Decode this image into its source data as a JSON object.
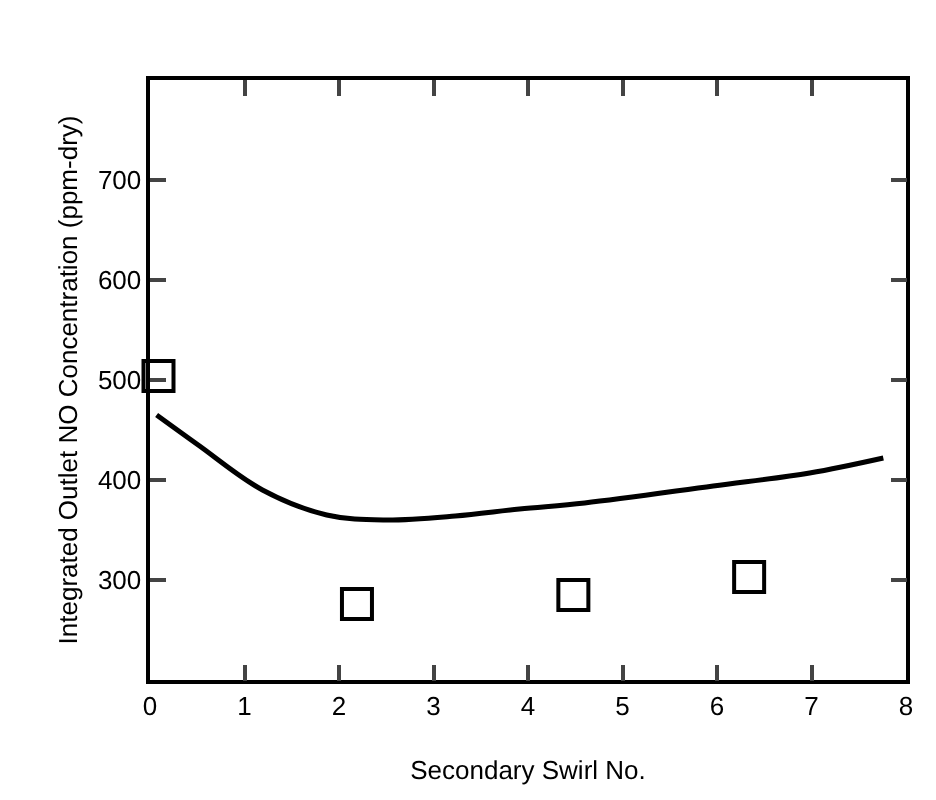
{
  "chart_data": {
    "type": "scatter",
    "xlabel": "Secondary Swirl No.",
    "ylabel": "Integrated Outlet NO Concentration (ppm-dry)",
    "xlim": [
      0,
      8
    ],
    "xticks": [
      0,
      1,
      2,
      3,
      4,
      5,
      6,
      7,
      8
    ],
    "ylim": [
      200,
      800
    ],
    "yticks": [
      300,
      400,
      500,
      600,
      700
    ],
    "grid": false,
    "legend": false,
    "series": [
      {
        "marker": "square",
        "color": "#000000",
        "x": [
          0.09,
          2.19,
          4.48,
          6.34
        ],
        "values": [
          504,
          276,
          285,
          303
        ]
      },
      {
        "type": "line",
        "marker": "none",
        "color": "#000000",
        "x": [
          0.07,
          0.51,
          1.19,
          1.87,
          2.48,
          3.23,
          3.91,
          4.6,
          5.96,
          6.98,
          7.76
        ],
        "values": [
          465,
          435,
          390,
          365,
          360,
          364,
          371,
          377,
          394,
          407,
          422
        ]
      }
    ]
  }
}
